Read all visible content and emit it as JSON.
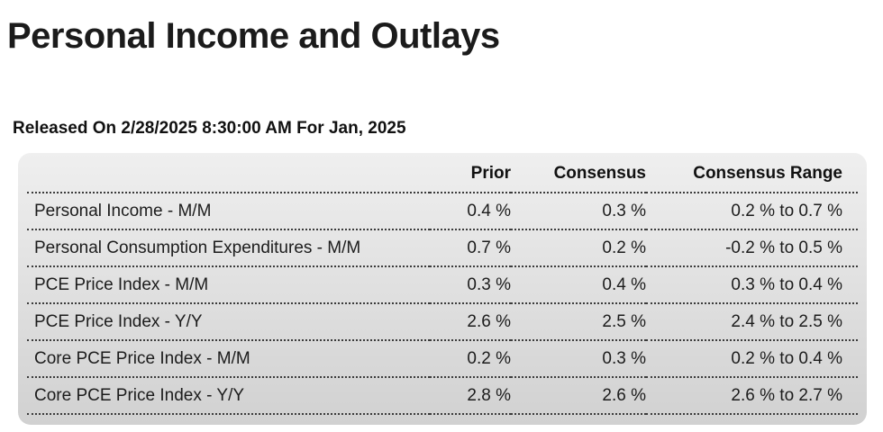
{
  "page": {
    "title": "Personal Income and Outlays",
    "released_line": "Released On 2/28/2025 8:30:00 AM For Jan, 2025"
  },
  "table": {
    "columns": {
      "label": "",
      "prior": "Prior",
      "consensus": "Consensus",
      "range": "Consensus Range"
    },
    "rows": [
      {
        "label": "Personal Income - M/M",
        "prior": "0.4 %",
        "consensus": "0.3 %",
        "range": "0.2 % to 0.7 %"
      },
      {
        "label": "Personal Consumption Expenditures - M/M",
        "prior": "0.7 %",
        "consensus": "0.2 %",
        "range": "-0.2 % to 0.5 %"
      },
      {
        "label": "PCE Price Index - M/M",
        "prior": "0.3 %",
        "consensus": "0.4 %",
        "range": "0.3 % to 0.4 %"
      },
      {
        "label": "PCE Price Index - Y/Y",
        "prior": "2.6 %",
        "consensus": "2.5 %",
        "range": "2.4 % to 2.5 %"
      },
      {
        "label": "Core PCE Price Index - M/M",
        "prior": "0.2 %",
        "consensus": "0.3 %",
        "range": "0.2 % to 0.4 %"
      },
      {
        "label": "Core PCE Price Index - Y/Y",
        "prior": "2.8 %",
        "consensus": "2.6 %",
        "range": "2.6 % to 2.7 %"
      }
    ]
  },
  "colors": {
    "panel_top": "#efefef",
    "panel_bottom": "#d1d1d1",
    "row_separator": "#3b3b3b",
    "text": "#1c1c1c"
  }
}
